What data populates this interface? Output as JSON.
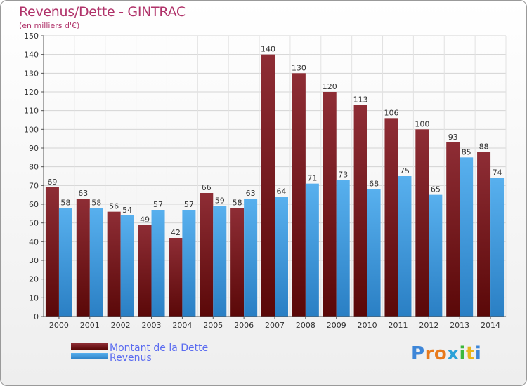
{
  "header": {
    "title": "Revenus/Dette - GINTRAC",
    "subtitle": "(en milliers d'€)"
  },
  "logo": {
    "letters": [
      "P",
      "r",
      "o",
      "x",
      "i",
      "t",
      "i"
    ],
    "colors": [
      "#3d86d8",
      "#e87a1c",
      "#e87a1c",
      "#2ba2d8",
      "#3db83d",
      "#e8b41c",
      "#3d86d8"
    ]
  },
  "chart_data": {
    "type": "bar",
    "title": "Revenus/Dette - GINTRAC",
    "ylabel": "(en milliers d'€)",
    "xlabel": "",
    "categories": [
      "2000",
      "2001",
      "2002",
      "2003",
      "2004",
      "2005",
      "2006",
      "2007",
      "2008",
      "2009",
      "2010",
      "2011",
      "2012",
      "2013",
      "2014"
    ],
    "series": [
      {
        "name": "Montant de la Dette",
        "color": "#7a1820",
        "values": [
          69,
          63,
          56,
          49,
          42,
          66,
          58,
          140,
          130,
          120,
          113,
          106,
          100,
          93,
          88
        ]
      },
      {
        "name": "Revenus",
        "color": "#3c9ae0",
        "values": [
          58,
          58,
          54,
          57,
          57,
          59,
          63,
          64,
          71,
          73,
          68,
          75,
          65,
          85,
          74
        ]
      }
    ],
    "ylim": [
      0,
      150
    ],
    "yticks": [
      0,
      10,
      20,
      30,
      40,
      50,
      60,
      70,
      80,
      90,
      100,
      110,
      120,
      130,
      140,
      150
    ],
    "grid": true,
    "legend": "bottom-left"
  }
}
